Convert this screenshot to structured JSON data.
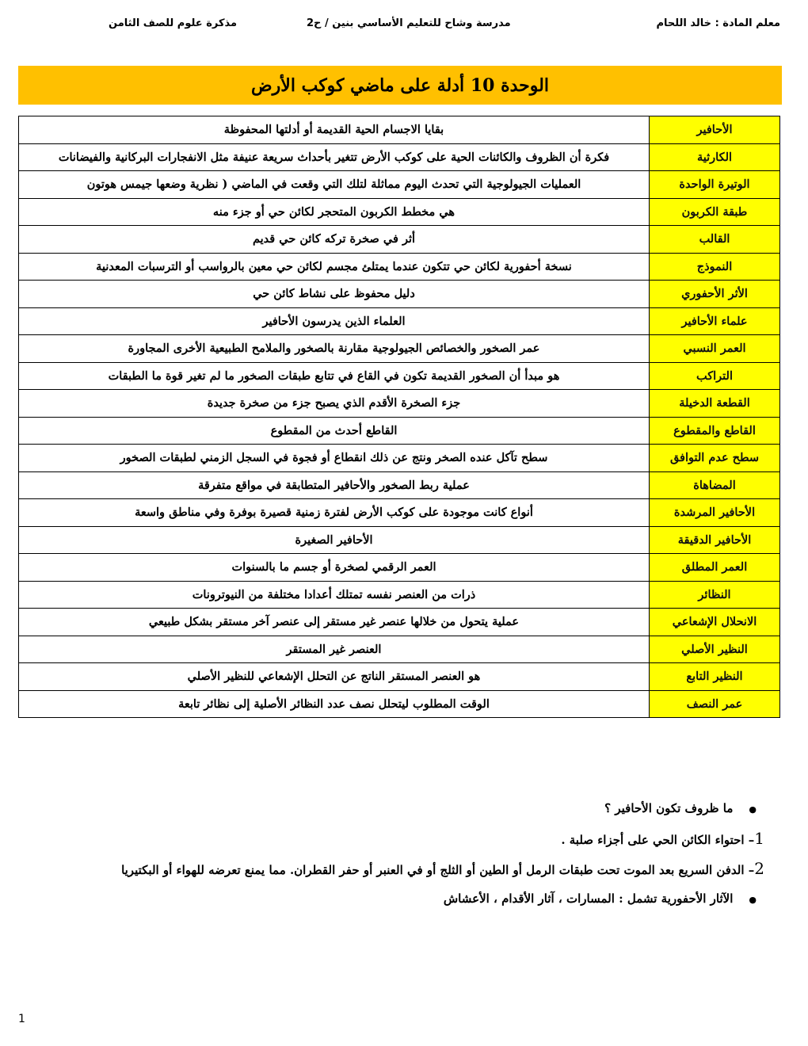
{
  "header": {
    "teacher": "معلم المادة : خالد اللحام",
    "school": "مدرسة وشاح للتعليم الأساسي بنين / ح2",
    "subject": "مذكرة علوم للصف الثامن"
  },
  "title": "الوحدة 10 أدلة على ماضي كوكب الأرض",
  "colors": {
    "banner": "#ffc000",
    "term_cell": "#ffff00"
  },
  "terms": [
    {
      "term": "الأحافير",
      "definition": "بقايا الاجسام الحية القديمة أو أدلتها المحفوظة"
    },
    {
      "term": "الكارثية",
      "definition": "فكرة أن الظروف والكائنات الحية على كوكب الأرض تتغير بأحداث سريعة عنيفة مثل الانفجارات البركانية والفيضانات"
    },
    {
      "term": "الوتيرة الواحدة",
      "definition": "العمليات الجيولوجية التي تحدث اليوم مماثلة لتلك التي وقعت في الماضي ( نظرية وضعها جيمس هوتون"
    },
    {
      "term": "طبقة الكربون",
      "definition": "هي مخطط الكربون المتحجر لكائن حي أو جزء منه"
    },
    {
      "term": "القالب",
      "definition": "أثر في صخرة تركه كائن حي قديم"
    },
    {
      "term": "النموذج",
      "definition": "نسخة أحفورية لكائن حي تتكون عندما يمتلئ مجسم لكائن حي معين بالرواسب أو الترسبات المعدنية"
    },
    {
      "term": "الأثر الأحفوري",
      "definition": "دليل محفوظ على نشاط كائن حي"
    },
    {
      "term": "علماء الأحافير",
      "definition": "العلماء الذين يدرسون الأحافير"
    },
    {
      "term": "العمر النسبي",
      "definition": "عمر الصخور والخصائص الجيولوجية مقارنة بالصخور والملامح الطبيعية الأخرى المجاورة"
    },
    {
      "term": "التراكب",
      "definition": "هو مبدأ أن الصخور القديمة تكون في القاع في تتابع طبقات الصخور ما لم تغير قوة ما الطبقات"
    },
    {
      "term": "القطعة الدخيلة",
      "definition": "جزء الصخرة الأقدم الذي يصبح جزء من صخرة جديدة"
    },
    {
      "term": "القاطع والمقطوع",
      "definition": "القاطع أحدث من المقطوع"
    },
    {
      "term": "سطح عدم التوافق",
      "definition": "سطح تآكل عنده الصخر ونتج عن ذلك انقطاع أو فجوة في السجل الزمني لطبقات الصخور"
    },
    {
      "term": "المضاهاة",
      "definition": "عملية ربط الصخور والأحافير المتطابقة في مواقع متفرقة"
    },
    {
      "term": "الأحافير المرشدة",
      "definition": "أنواع كانت موجودة على كوكب الأرض لفترة زمنية قصيرة بوفرة وفي مناطق واسعة"
    },
    {
      "term": "الأحافير الدقيقة",
      "definition": "الأحافير الصغيرة"
    },
    {
      "term": "العمر المطلق",
      "definition": "العمر الرقمي لصخرة أو جسم ما بالسنوات"
    },
    {
      "term": "النظائر",
      "definition": "ذرات من العنصر نفسه تمتلك أعدادا مختلفة من النيوترونات"
    },
    {
      "term": "الانحلال الإشعاعي",
      "definition": "عملية يتحول من خلالها عنصر غير مستقر إلى عنصر آخر مستقر بشكل طبيعي"
    },
    {
      "term": "النظير الأصلي",
      "definition": "العنصر غير المستقر"
    },
    {
      "term": "النظير التابع",
      "definition": "هو العنصر المستقر الناتج عن التحلل الإشعاعي للنظير الأصلي"
    },
    {
      "term": "عمر النصف",
      "definition": "الوقت المطلوب ليتحلل نصف عدد النظائر الأصلية إلى نظائر تابعة"
    }
  ],
  "notes": {
    "question": "ما ظروف تكون الأحافير ؟",
    "answer1_num": "1",
    "answer1": "– احتواء الكائن الحي على أجزاء صلبة .",
    "answer2_num": "2",
    "answer2": "– الدفن السريع بعد الموت تحت طبقات الرمل أو الطين أو الثلج أو في العنبر أو حفر القطران. مما يمنع تعرضه للهواء أو البكتيريا",
    "trace_fossils": "الآثار الأحفورية تشمل : المسارات ، آثار الأقدام ، الأعشاش"
  },
  "page_number": "1"
}
